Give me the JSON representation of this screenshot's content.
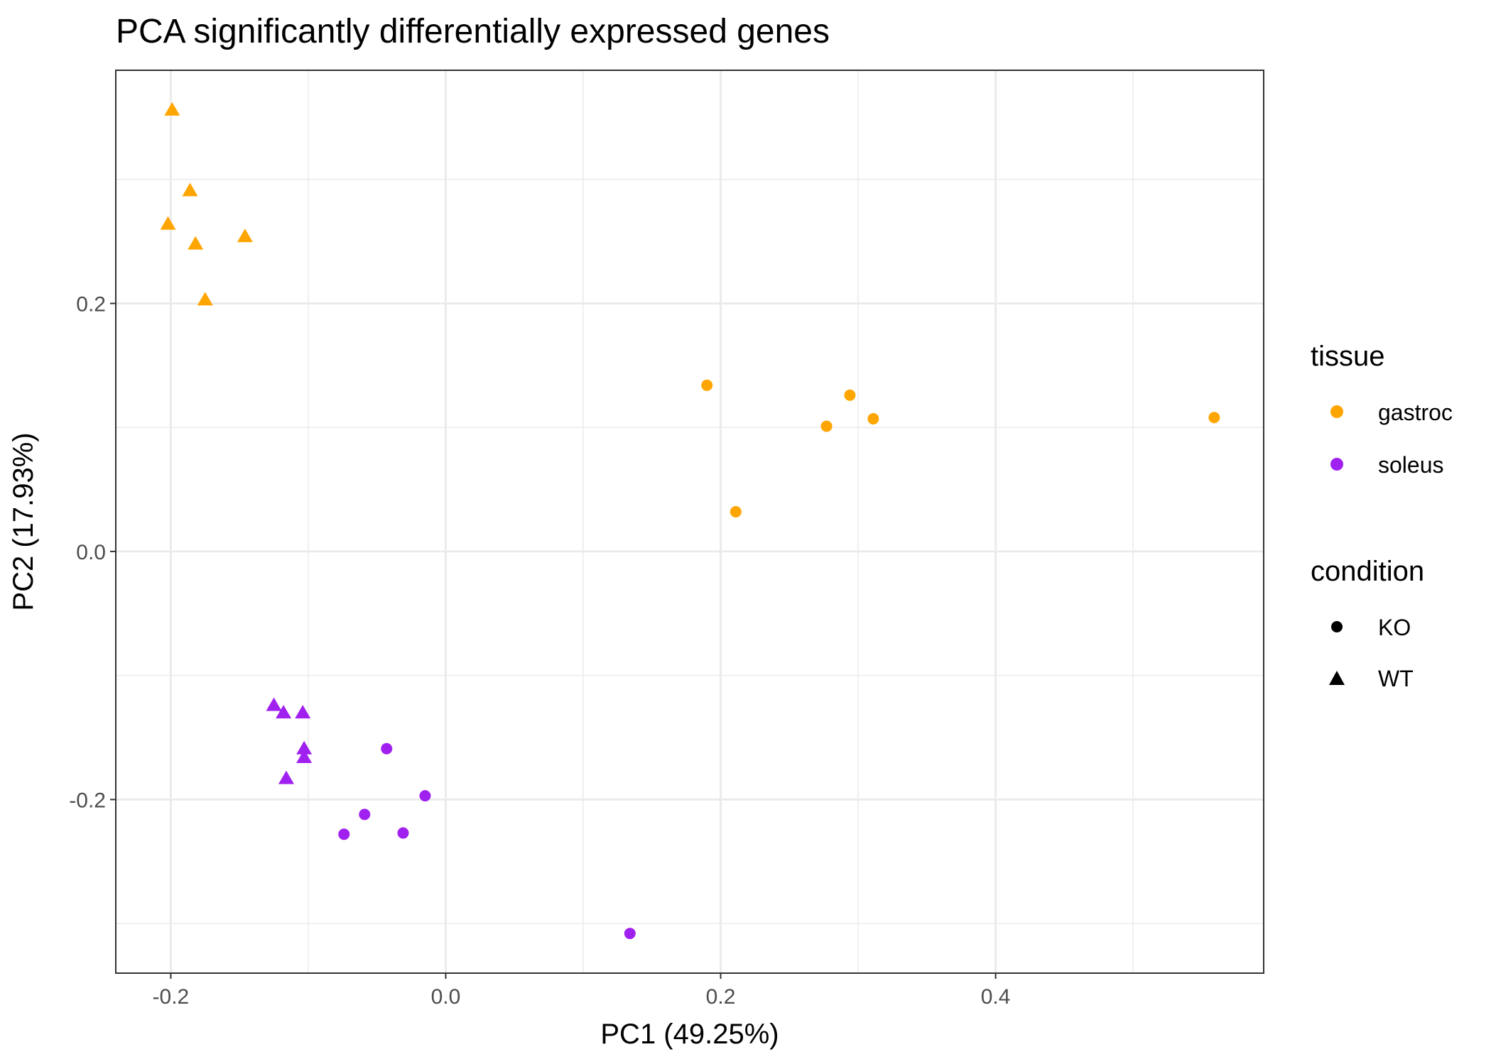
{
  "chart_data": {
    "type": "scatter",
    "title": "PCA significantly differentially expressed genes",
    "xlabel": "PC1 (49.25%)",
    "ylabel": "PC2 (17.93%)",
    "xlim": [
      -0.24,
      0.595
    ],
    "ylim": [
      -0.34,
      0.388
    ],
    "x_ticks": [
      -0.2,
      0.0,
      0.2,
      0.4
    ],
    "x_tick_labels": [
      "-0.2",
      "0.0",
      "0.2",
      "0.4"
    ],
    "y_ticks": [
      -0.2,
      0.0,
      0.2
    ],
    "y_tick_labels": [
      "-0.2",
      "0.0",
      "0.2"
    ],
    "x_minor": [
      -0.1,
      0.1,
      0.3,
      0.5
    ],
    "y_minor": [
      -0.3,
      -0.1,
      0.1,
      0.3
    ],
    "grid": true,
    "legend_position": "right",
    "legend": {
      "tissue": {
        "title": "tissue",
        "entries": [
          {
            "label": "gastroc",
            "color": "#FFA500"
          },
          {
            "label": "soleus",
            "color": "#A020F0"
          }
        ]
      },
      "condition": {
        "title": "condition",
        "entries": [
          {
            "label": "KO",
            "shape": "circle"
          },
          {
            "label": "WT",
            "shape": "triangle"
          }
        ]
      }
    },
    "series": [
      {
        "tissue": "gastroc",
        "condition": "WT",
        "color": "#FFA500",
        "shape": "triangle",
        "points": [
          {
            "x": -0.199,
            "y": 0.356
          },
          {
            "x": -0.186,
            "y": 0.291
          },
          {
            "x": -0.202,
            "y": 0.264
          },
          {
            "x": -0.182,
            "y": 0.248
          },
          {
            "x": -0.146,
            "y": 0.254
          },
          {
            "x": -0.175,
            "y": 0.203
          }
        ]
      },
      {
        "tissue": "gastroc",
        "condition": "KO",
        "color": "#FFA500",
        "shape": "circle",
        "points": [
          {
            "x": 0.19,
            "y": 0.134
          },
          {
            "x": 0.294,
            "y": 0.126
          },
          {
            "x": 0.277,
            "y": 0.101
          },
          {
            "x": 0.311,
            "y": 0.107
          },
          {
            "x": 0.559,
            "y": 0.108
          },
          {
            "x": 0.211,
            "y": 0.032
          }
        ]
      },
      {
        "tissue": "soleus",
        "condition": "WT",
        "color": "#A020F0",
        "shape": "triangle",
        "points": [
          {
            "x": -0.125,
            "y": -0.124
          },
          {
            "x": -0.118,
            "y": -0.13
          },
          {
            "x": -0.104,
            "y": -0.13
          },
          {
            "x": -0.103,
            "y": -0.159
          },
          {
            "x": -0.103,
            "y": -0.166
          },
          {
            "x": -0.116,
            "y": -0.183
          }
        ]
      },
      {
        "tissue": "soleus",
        "condition": "KO",
        "color": "#A020F0",
        "shape": "circle",
        "points": [
          {
            "x": -0.043,
            "y": -0.159
          },
          {
            "x": -0.015,
            "y": -0.197
          },
          {
            "x": -0.059,
            "y": -0.212
          },
          {
            "x": -0.074,
            "y": -0.228
          },
          {
            "x": -0.031,
            "y": -0.227
          },
          {
            "x": 0.134,
            "y": -0.308
          }
        ]
      }
    ]
  }
}
